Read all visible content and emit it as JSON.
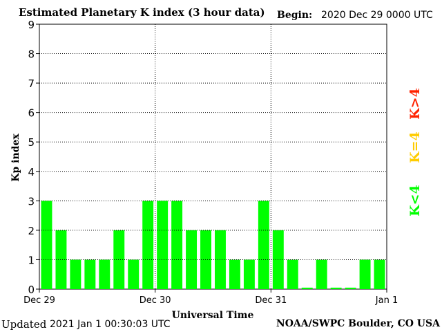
{
  "header": {
    "title": "Estimated Planetary K index (3 hour data)",
    "begin_label": "Begin:",
    "begin_value": "2020 Dec 29 0000 UTC"
  },
  "footer": {
    "updated_label": "Updated",
    "updated_value": "2021 Jan  1 00:30:03 UTC",
    "credit": "NOAA/SWPC Boulder, CO USA"
  },
  "legend": {
    "items": [
      {
        "label": "K<4",
        "color": "#00ff00"
      },
      {
        "label": "K=4",
        "color": "#ffcc00"
      },
      {
        "label": "K>4",
        "color": "#ff2200"
      }
    ]
  },
  "chart_data": {
    "type": "bar",
    "title": "Estimated Planetary K index (3 hour data)",
    "xlabel": "Universal Time",
    "ylabel": "Kp index",
    "ylim": [
      0,
      9
    ],
    "yticks": [
      "0",
      "1",
      "2",
      "3",
      "4",
      "5",
      "6",
      "7",
      "8",
      "9"
    ],
    "date_ticks": [
      "Dec 29",
      "Dec 30",
      "Dec 31",
      "Jan 1"
    ],
    "grid": true,
    "bar_color": "#00ff00",
    "values": [
      3,
      2,
      1,
      1,
      1,
      2,
      1,
      3,
      3,
      3,
      2,
      2,
      2,
      1,
      1,
      3,
      2,
      1,
      0.05,
      1,
      0.05,
      0.05,
      1,
      1
    ]
  }
}
